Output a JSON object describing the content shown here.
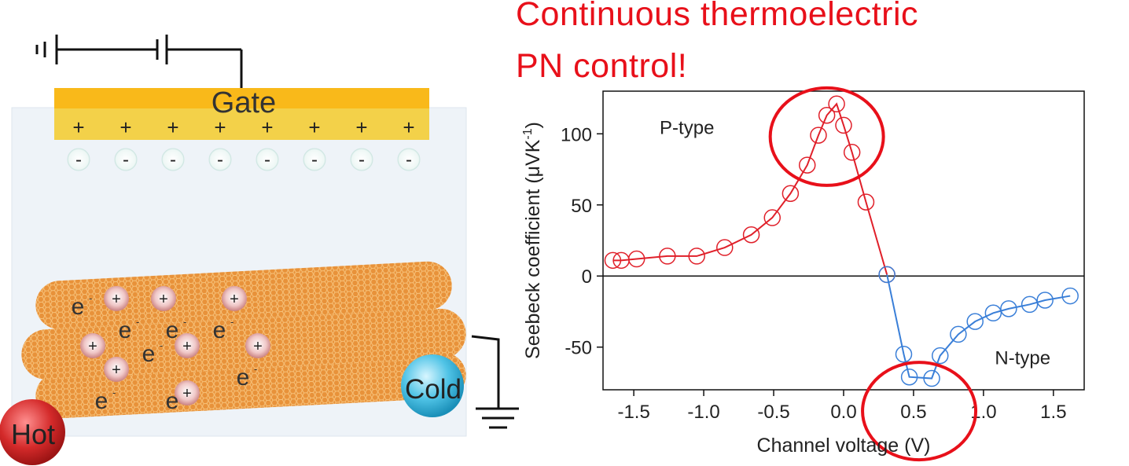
{
  "headline": {
    "line1": "Continuous thermoelectric",
    "line2": "PN control!"
  },
  "schematic": {
    "gate_label": "Gate",
    "hot_label": "Hot",
    "cold_label": "Cold",
    "plus": "+",
    "minus": "-",
    "electron": "e",
    "electron_sup": "-"
  },
  "colors": {
    "p_type": "#e0202a",
    "n_type": "#3a7fd8",
    "headline": "#e8101a",
    "gate": "#f6bf1c",
    "nanotube": "#e08a2e",
    "hot": "#d42a2a",
    "cold": "#4fc3e6"
  },
  "chart_data": {
    "type": "line",
    "xlabel": "Channel voltage (V)",
    "ylabel_main": "Seebeck coefficient (μVK",
    "ylabel_sup": "-1",
    "ylabel_end": ")",
    "xlim": [
      -1.72,
      1.72
    ],
    "ylim": [
      -80,
      130
    ],
    "xticks": [
      -1.5,
      -1.0,
      -0.5,
      0.0,
      0.5,
      1.0,
      1.5
    ],
    "xtick_labels": [
      "-1.5",
      "-1.0",
      "-0.5",
      "0.0",
      "0.5",
      "1.0",
      "1.5"
    ],
    "yticks": [
      -50,
      0,
      50,
      100
    ],
    "ytick_labels": [
      "-50",
      "0",
      "50",
      "100"
    ],
    "zero_line": true,
    "annotations": [
      {
        "text": "P-type",
        "x": -1.12,
        "y": 100
      },
      {
        "text": "N-type",
        "x": 1.28,
        "y": -62
      }
    ],
    "series": [
      {
        "color": "#e0202a",
        "x": [
          -1.65,
          -1.59,
          -1.48,
          -1.26,
          -1.05,
          -0.85,
          -0.66,
          -0.51,
          -0.38,
          -0.26,
          -0.18,
          -0.12,
          -0.05,
          0.0,
          0.06,
          0.16,
          0.31
        ],
        "y": [
          11,
          11,
          12,
          14,
          14,
          20,
          29,
          41,
          58,
          78,
          99,
          113,
          121,
          106,
          87,
          52,
          1
        ]
      },
      {
        "color": "#3a7fd8",
        "x": [
          0.31,
          0.43,
          0.47,
          0.63,
          0.69,
          0.82,
          0.94,
          1.07,
          1.18,
          1.33,
          1.44,
          1.62
        ],
        "y": [
          1,
          -55,
          -71,
          -72,
          -56,
          -41,
          -32,
          -26,
          -23,
          -20,
          -17,
          -14
        ]
      }
    ],
    "highlight_circles": [
      {
        "x": -0.12,
        "y": 98
      },
      {
        "x": 0.54,
        "y": -95
      }
    ]
  }
}
